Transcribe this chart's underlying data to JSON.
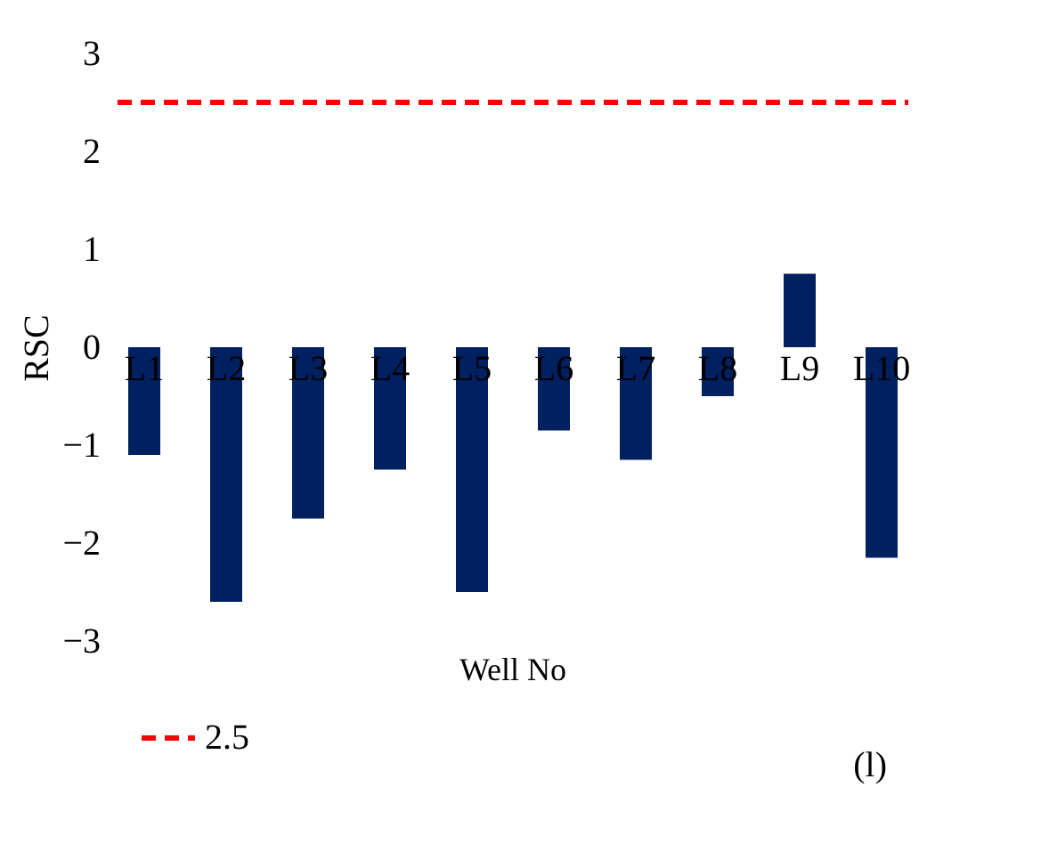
{
  "chart_data": {
    "type": "bar",
    "xlabel": "Well No",
    "ylabel": "RSC",
    "categories": [
      "L1",
      "L2",
      "L3",
      "L4",
      "L5",
      "L6",
      "L7",
      "L8",
      "L9",
      "L10"
    ],
    "values": [
      -1.1,
      -2.6,
      -1.75,
      -1.25,
      -2.5,
      -0.85,
      -1.15,
      -0.5,
      0.75,
      -2.15
    ],
    "color": "#002060",
    "ylim": [
      -3,
      3
    ],
    "yticks": [
      -3,
      -2,
      -1,
      0,
      1,
      2,
      3
    ],
    "grid": false,
    "legend": "bottom",
    "ref_lines": [
      {
        "axis": "y",
        "value": 2.5,
        "label": "2.5",
        "color": "#ff0000",
        "line_style": "dashed"
      }
    ],
    "annotations": [
      "(l)"
    ]
  }
}
